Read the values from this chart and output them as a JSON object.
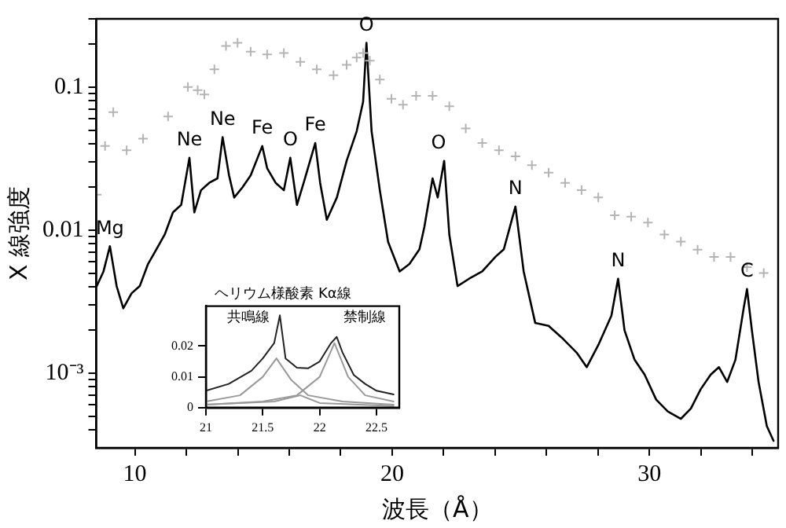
{
  "chart_data": [
    {
      "type": "line",
      "xlabel": "波長（Å）",
      "ylabel": "X 線強度",
      "log": "y",
      "grid": false,
      "legend": false,
      "xlim": [
        8.5,
        35
      ],
      "xticks": [
        {
          "value": 10,
          "label": "10"
        },
        {
          "value": 12,
          "label": null
        },
        {
          "value": 14,
          "label": null
        },
        {
          "value": 16,
          "label": null
        },
        {
          "value": 18,
          "label": null
        },
        {
          "value": 20,
          "label": "20"
        },
        {
          "value": 22,
          "label": null
        },
        {
          "value": 24,
          "label": null
        },
        {
          "value": 26,
          "label": null
        },
        {
          "value": 28,
          "label": null
        },
        {
          "value": 30,
          "label": "30"
        },
        {
          "value": 32,
          "label": null
        },
        {
          "value": 34,
          "label": null
        }
      ],
      "ylim": [
        0.0003,
        0.3
      ],
      "yticks": [
        {
          "value": 0.0004,
          "label": null
        },
        {
          "value": 0.0005,
          "label": null
        },
        {
          "value": 0.0006,
          "label": null
        },
        {
          "value": 0.0007,
          "label": null
        },
        {
          "value": 0.0008,
          "label": null
        },
        {
          "value": 0.0009,
          "label": null
        },
        {
          "value": 0.001,
          "label": "10⁻³"
        },
        {
          "value": 0.002,
          "label": null
        },
        {
          "value": 0.003,
          "label": null
        },
        {
          "value": 0.004,
          "label": null
        },
        {
          "value": 0.005,
          "label": null
        },
        {
          "value": 0.006,
          "label": null
        },
        {
          "value": 0.007,
          "label": null
        },
        {
          "value": 0.008,
          "label": null
        },
        {
          "value": 0.009,
          "label": null
        },
        {
          "value": 0.01,
          "label": "0.01"
        },
        {
          "value": 0.02,
          "label": null
        },
        {
          "value": 0.03,
          "label": null
        },
        {
          "value": 0.04,
          "label": null
        },
        {
          "value": 0.05,
          "label": null
        },
        {
          "value": 0.06,
          "label": null
        },
        {
          "value": 0.07,
          "label": null
        },
        {
          "value": 0.08,
          "label": null
        },
        {
          "value": 0.09,
          "label": null
        },
        {
          "value": 0.1,
          "label": "0.1"
        },
        {
          "value": 0.2,
          "label": null
        },
        {
          "value": 0.3,
          "label": null
        }
      ],
      "series": [
        {
          "type": "scatter",
          "marker": "cross",
          "color": "#b4b4b4",
          "x": [
            8.52,
            8.84,
            9.16,
            9.68,
            10.32,
            11.29,
            12.06,
            12.44,
            12.7,
            13.09,
            13.54,
            13.99,
            14.5,
            15.14,
            15.79,
            16.43,
            17.07,
            17.72,
            18.23,
            18.62,
            18.87,
            19.13,
            19.52,
            19.97,
            20.42,
            20.93,
            21.57,
            22.22,
            22.86,
            23.5,
            24.15,
            24.79,
            25.43,
            26.08,
            26.72,
            27.36,
            28.01,
            28.65,
            29.29,
            29.94,
            30.58,
            31.22,
            31.87,
            32.51,
            33.15,
            33.79,
            34.44
          ],
          "values": [
            0.0177,
            0.0387,
            0.0668,
            0.0361,
            0.0436,
            0.0622,
            0.1,
            0.0953,
            0.0887,
            0.133,
            0.194,
            0.204,
            0.177,
            0.169,
            0.173,
            0.15,
            0.133,
            0.121,
            0.143,
            0.161,
            0.173,
            0.153,
            0.113,
            0.0828,
            0.0752,
            0.0867,
            0.0867,
            0.0734,
            0.0514,
            0.0406,
            0.0361,
            0.0328,
            0.0284,
            0.0252,
            0.0214,
            0.019,
            0.0169,
            0.0127,
            0.0124,
            0.0113,
            0.0093,
            0.0083,
            0.0073,
            0.0065,
            0.0065,
            0.0055,
            0.005
          ]
        },
        {
          "type": "line",
          "marker": "none",
          "color": "#000000",
          "x": [
            8.52,
            8.78,
            9.03,
            9.29,
            9.55,
            9.87,
            10.19,
            10.51,
            10.84,
            11.16,
            11.48,
            11.8,
            12.12,
            12.31,
            12.57,
            12.89,
            13.21,
            13.41,
            13.66,
            13.86,
            14.18,
            14.5,
            14.95,
            15.14,
            15.47,
            15.79,
            16.04,
            16.3,
            16.56,
            17.01,
            17.2,
            17.46,
            17.85,
            18.23,
            18.62,
            18.87,
            19.0,
            19.2,
            19.52,
            19.84,
            20.29,
            20.67,
            21.06,
            21.25,
            21.57,
            21.77,
            22.02,
            22.22,
            22.54,
            22.99,
            23.5,
            24.02,
            24.34,
            24.79,
            25.11,
            25.56,
            26.08,
            26.59,
            27.17,
            27.56,
            28.01,
            28.52,
            28.78,
            29.03,
            29.42,
            29.81,
            30.26,
            30.71,
            31.22,
            31.61,
            31.99,
            32.38,
            32.7,
            33.02,
            33.34,
            33.66,
            33.79,
            33.98,
            34.24,
            34.56,
            34.82
          ],
          "values": [
            0.00406,
            0.00514,
            0.00771,
            0.00406,
            0.00284,
            0.00361,
            0.00406,
            0.00579,
            0.00735,
            0.00931,
            0.0133,
            0.015,
            0.032,
            0.0133,
            0.019,
            0.0214,
            0.023,
            0.0446,
            0.0241,
            0.0169,
            0.0199,
            0.0241,
            0.0387,
            0.0271,
            0.0214,
            0.019,
            0.032,
            0.015,
            0.0214,
            0.0406,
            0.0214,
            0.0118,
            0.0169,
            0.0305,
            0.0491,
            0.0789,
            0.204,
            0.0491,
            0.019,
            0.00828,
            0.00514,
            0.00579,
            0.00735,
            0.0105,
            0.023,
            0.0169,
            0.0305,
            0.00931,
            0.00406,
            0.00457,
            0.00514,
            0.00652,
            0.00735,
            0.0146,
            0.00514,
            0.00224,
            0.00214,
            0.00177,
            0.00139,
            0.0011,
            0.00157,
            0.00252,
            0.00457,
            0.00199,
            0.00124,
            0.000977,
            0.000652,
            0.00054,
            0.000479,
            0.000566,
            0.000771,
            0.000977,
            0.0011,
            0.000867,
            0.00124,
            0.00284,
            0.00387,
            0.00199,
            0.000867,
            0.000426,
            0.000336
          ]
        }
      ],
      "annotations": [
        {
          "text": "Mg",
          "x": 9.03,
          "y": 0.00771
        },
        {
          "text": "Ne",
          "x": 12.12,
          "y": 0.032
        },
        {
          "text": "Ne",
          "x": 13.41,
          "y": 0.0446
        },
        {
          "text": "Fe",
          "x": 14.95,
          "y": 0.0387
        },
        {
          "text": "O",
          "x": 16.04,
          "y": 0.032
        },
        {
          "text": "Fe",
          "x": 17.01,
          "y": 0.0406
        },
        {
          "text": "O",
          "x": 19.0,
          "y": 0.204
        },
        {
          "text": "O",
          "x": 21.8,
          "y": 0.0305
        },
        {
          "text": "N",
          "x": 24.79,
          "y": 0.0146
        },
        {
          "text": "N",
          "x": 28.78,
          "y": 0.00457
        },
        {
          "text": "C",
          "x": 33.79,
          "y": 0.00387
        }
      ]
    },
    {
      "type": "line",
      "title": "ヘリウム様酸素 Kα線",
      "grid": false,
      "legend": false,
      "xlim": [
        21,
        22.7
      ],
      "xticks": [
        21,
        21.5,
        22,
        22.5
      ],
      "ylim": [
        0,
        0.033
      ],
      "yticks": [
        0,
        0.01,
        0.02
      ],
      "series": [
        {
          "color": "#222222",
          "x": [
            21.0,
            21.2,
            21.4,
            21.5,
            21.6,
            21.65,
            21.7,
            21.8,
            21.9,
            22.0,
            22.1,
            22.15,
            22.2,
            22.3,
            22.4,
            22.5,
            22.65
          ],
          "values": [
            0.0055,
            0.0077,
            0.012,
            0.016,
            0.021,
            0.03,
            0.016,
            0.013,
            0.0128,
            0.015,
            0.021,
            0.023,
            0.018,
            0.0106,
            0.0077,
            0.0055,
            0.0043
          ]
        },
        {
          "color": "#999999",
          "x": [
            21.0,
            21.3,
            21.5,
            21.62,
            21.75,
            21.9,
            22.2,
            22.65
          ],
          "values": [
            0.002,
            0.004,
            0.01,
            0.016,
            0.009,
            0.004,
            0.002,
            0.001
          ]
        },
        {
          "color": "#999999",
          "x": [
            21.0,
            21.5,
            21.8,
            22.0,
            22.13,
            22.25,
            22.4,
            22.65
          ],
          "values": [
            0.001,
            0.002,
            0.004,
            0.01,
            0.021,
            0.01,
            0.004,
            0.002
          ]
        },
        {
          "color": "#999999",
          "x": [
            21.0,
            21.6,
            21.83,
            22.0,
            22.65
          ],
          "values": [
            0.001,
            0.002,
            0.004,
            0.0015,
            0.0005
          ]
        }
      ],
      "annotations": [
        "共鳴線",
        "禁制線"
      ]
    }
  ]
}
